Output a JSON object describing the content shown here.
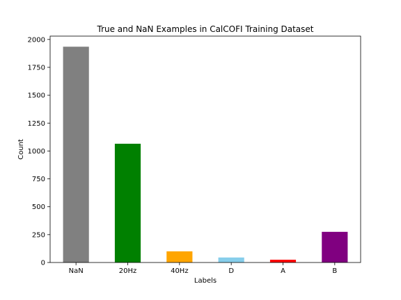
{
  "chart_data": {
    "type": "bar",
    "title": "True and NaN Examples in CalCOFI Training Dataset",
    "xlabel": "Labels",
    "ylabel": "Count",
    "categories": [
      "NaN",
      "20Hz",
      "40Hz",
      "D",
      "A",
      "B"
    ],
    "values": [
      1935,
      1065,
      100,
      45,
      25,
      275
    ],
    "colors": [
      "#808080",
      "#008000",
      "#ffa500",
      "#87ceeb",
      "#ff0000",
      "#800080"
    ],
    "ylim": [
      0,
      2030
    ],
    "yticks": [
      0,
      250,
      500,
      750,
      1000,
      1250,
      1500,
      1750,
      2000
    ],
    "grid": false,
    "legend": "none"
  }
}
